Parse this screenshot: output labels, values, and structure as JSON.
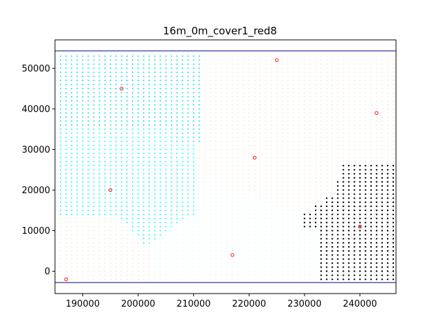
{
  "chart_data": {
    "type": "scatter",
    "title": "16m_0m_cover1_red8",
    "xlabel": "",
    "ylabel": "",
    "xlim": [
      185000,
      246500
    ],
    "ylim": [
      -5500,
      57000
    ],
    "x_ticks": [
      190000,
      200000,
      210000,
      220000,
      230000,
      240000
    ],
    "y_ticks": [
      0,
      10000,
      20000,
      30000,
      40000,
      50000
    ],
    "x_tick_labels": [
      "190000",
      "200000",
      "210000",
      "220000",
      "230000",
      "240000"
    ],
    "y_tick_labels": [
      "0",
      "10000",
      "20000",
      "30000",
      "40000",
      "50000"
    ],
    "grid": false,
    "legend": "none",
    "horizontal_lines": [
      {
        "y": 54300,
        "color": "#00008b"
      },
      {
        "y": -2800,
        "color": "#00008b"
      }
    ],
    "grid_points": {
      "x_start": 186000,
      "x_end": 246000,
      "x_step": 1000,
      "y_start": -2000,
      "y_end": 53000,
      "y_step": 1000
    },
    "regions": [
      {
        "name": "",
        "color": "#faebd7",
        "description": "background region"
      },
      {
        "name": "",
        "color": "#e0ffff",
        "description": "light cyan lower-middle region"
      },
      {
        "name": "",
        "color": "#00e5ee",
        "description": "cyan upper-left region"
      },
      {
        "name": "",
        "color": "#00ffff",
        "description": "bright cyan middle-left region"
      },
      {
        "name": "",
        "color": "#000000",
        "description": "black lower-right region"
      }
    ],
    "centers": [
      {
        "x": 187000,
        "y": -2000
      },
      {
        "x": 195000,
        "y": 20000
      },
      {
        "x": 197000,
        "y": 45000
      },
      {
        "x": 217000,
        "y": 4000
      },
      {
        "x": 221000,
        "y": 28000
      },
      {
        "x": 225000,
        "y": 52000
      },
      {
        "x": 240000,
        "y": 11000
      },
      {
        "x": 243000,
        "y": 39000
      }
    ],
    "center_color": "#ff0000"
  }
}
